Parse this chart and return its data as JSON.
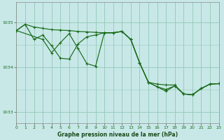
{
  "title": "Graphe pression niveau de la mer (hPa)",
  "background_color": "#c8e8e8",
  "grid_color": "#99ccbb",
  "line_color": "#1a6b1a",
  "xlim": [
    0,
    23
  ],
  "ylim": [
    1032.75,
    1035.45
  ],
  "yticks": [
    1033,
    1034,
    1035
  ],
  "xticks": [
    0,
    1,
    2,
    3,
    4,
    5,
    6,
    7,
    8,
    9,
    10,
    11,
    12,
    13,
    14,
    15,
    16,
    17,
    18,
    19,
    20,
    21,
    22,
    23
  ],
  "series1_x": [
    0,
    1,
    2,
    3,
    4,
    5,
    6,
    7,
    8,
    9,
    10,
    11,
    12,
    13,
    14,
    15,
    16,
    17,
    18,
    19,
    20,
    21,
    22,
    23
  ],
  "series1_y": [
    1034.82,
    1034.96,
    1034.9,
    1034.87,
    1034.84,
    1034.83,
    1034.82,
    1034.8,
    1034.79,
    1034.78,
    1034.77,
    1034.77,
    1034.8,
    1034.62,
    1034.1,
    1033.66,
    1033.62,
    1033.6,
    1033.6,
    1033.4,
    1033.38,
    1033.52,
    1033.62,
    1033.63
  ],
  "series2_x": [
    0,
    1,
    2,
    3,
    4,
    5,
    6,
    7,
    8,
    9,
    10,
    11,
    12,
    13,
    14,
    15,
    16,
    17,
    18,
    19,
    20,
    21,
    22,
    23
  ],
  "series2_y": [
    1034.82,
    1034.96,
    1034.62,
    1034.72,
    1034.48,
    1034.2,
    1034.18,
    1034.52,
    1034.68,
    1034.72,
    1034.77,
    1034.77,
    1034.8,
    1034.62,
    1034.1,
    1033.66,
    1033.56,
    1033.5,
    1033.58,
    1033.4,
    1033.38,
    1033.52,
    1033.62,
    1033.63
  ],
  "series3_x": [
    0,
    3,
    4,
    5,
    6,
    7,
    8,
    9,
    10,
    11,
    12,
    13,
    14,
    15,
    16,
    17,
    18,
    19,
    20,
    21,
    22,
    23
  ],
  "series3_y": [
    1034.82,
    1034.62,
    1034.32,
    1034.55,
    1034.75,
    1034.42,
    1034.08,
    1034.02,
    1034.77,
    1034.77,
    1034.8,
    1034.62,
    1034.1,
    1033.66,
    1033.56,
    1033.46,
    1033.58,
    1033.4,
    1033.38,
    1033.52,
    1033.62,
    1033.63
  ]
}
